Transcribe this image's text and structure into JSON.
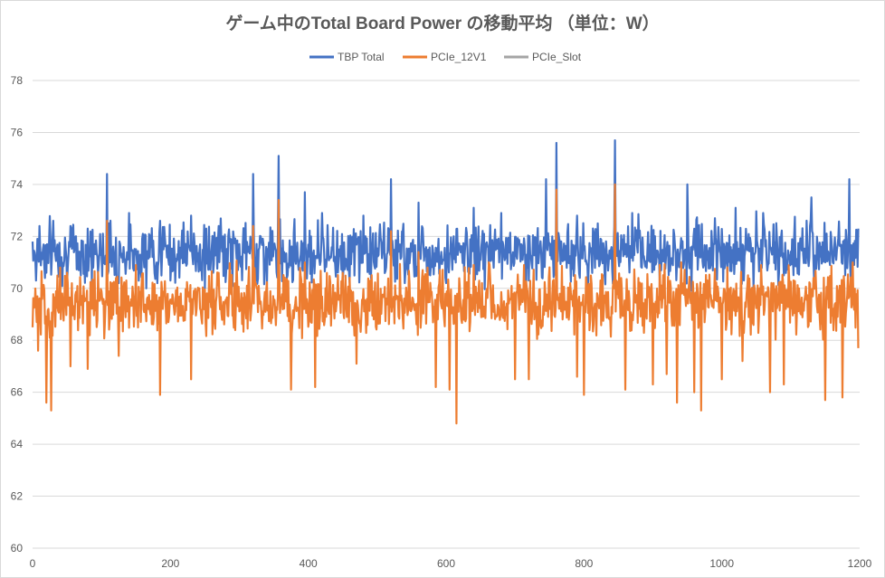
{
  "chart_data": {
    "type": "line",
    "title": "ゲーム中のTotal Board Power の移動平均 （単位：W）",
    "xlabel": "",
    "ylabel": "",
    "xlim": [
      0,
      1200
    ],
    "ylim": [
      60,
      78
    ],
    "x_ticks": [
      0,
      200,
      400,
      600,
      800,
      1000,
      1200
    ],
    "y_ticks": [
      60,
      62,
      64,
      66,
      68,
      70,
      72,
      74,
      76,
      78
    ],
    "grid": true,
    "legend_position": "top",
    "series": [
      {
        "name": "TBP Total",
        "color": "#4472c4",
        "base": 71.4,
        "noise": 0.55,
        "points": [
          [
            0,
            71.8
          ],
          [
            5,
            70.3
          ],
          [
            10,
            72.4
          ],
          [
            20,
            70.6
          ],
          [
            30,
            72.6
          ],
          [
            40,
            71.0
          ],
          [
            55,
            72.4
          ],
          [
            70,
            70.5
          ],
          [
            80,
            72.3
          ],
          [
            95,
            70.6
          ],
          [
            108,
            74.4
          ],
          [
            112,
            71.0
          ],
          [
            125,
            70.2
          ],
          [
            140,
            72.9
          ],
          [
            165,
            70.0
          ],
          [
            185,
            72.6
          ],
          [
            200,
            70.3
          ],
          [
            230,
            72.8
          ],
          [
            250,
            70.0
          ],
          [
            270,
            72.4
          ],
          [
            320,
            74.4
          ],
          [
            340,
            70.1
          ],
          [
            357,
            75.1
          ],
          [
            370,
            70.5
          ],
          [
            395,
            73.7
          ],
          [
            420,
            72.9
          ],
          [
            450,
            70.3
          ],
          [
            480,
            72.8
          ],
          [
            520,
            74.2
          ],
          [
            540,
            70.2
          ],
          [
            560,
            73.3
          ],
          [
            600,
            70.2
          ],
          [
            640,
            73.1
          ],
          [
            680,
            72.9
          ],
          [
            720,
            70.3
          ],
          [
            745,
            74.2
          ],
          [
            760,
            75.6
          ],
          [
            790,
            72.8
          ],
          [
            820,
            72.5
          ],
          [
            845,
            75.7
          ],
          [
            870,
            72.9
          ],
          [
            900,
            70.8
          ],
          [
            950,
            74.0
          ],
          [
            990,
            72.7
          ],
          [
            1020,
            73.1
          ],
          [
            1060,
            72.9
          ],
          [
            1090,
            70.5
          ],
          [
            1130,
            73.5
          ],
          [
            1150,
            71.0
          ],
          [
            1185,
            74.2
          ],
          [
            1192,
            70.9
          ],
          [
            1198,
            72.3
          ]
        ]
      },
      {
        "name": "PCIe_12V1",
        "color": "#ed7d31",
        "base": 69.5,
        "noise": 0.6,
        "points": [
          [
            0,
            68.5
          ],
          [
            8,
            67.6
          ],
          [
            20,
            65.6
          ],
          [
            27,
            65.3
          ],
          [
            40,
            70.8
          ],
          [
            55,
            67.0
          ],
          [
            80,
            66.9
          ],
          [
            108,
            72.6
          ],
          [
            125,
            67.4
          ],
          [
            150,
            70.9
          ],
          [
            185,
            65.9
          ],
          [
            230,
            66.5
          ],
          [
            270,
            70.6
          ],
          [
            320,
            72.4
          ],
          [
            357,
            73.4
          ],
          [
            375,
            66.1
          ],
          [
            395,
            71.0
          ],
          [
            410,
            66.2
          ],
          [
            450,
            70.6
          ],
          [
            470,
            67.1
          ],
          [
            520,
            72.2
          ],
          [
            560,
            71.4
          ],
          [
            585,
            66.2
          ],
          [
            605,
            66.1
          ],
          [
            615,
            64.8
          ],
          [
            640,
            70.9
          ],
          [
            700,
            66.5
          ],
          [
            720,
            66.5
          ],
          [
            760,
            73.8
          ],
          [
            790,
            66.6
          ],
          [
            800,
            65.9
          ],
          [
            845,
            74.0
          ],
          [
            860,
            66.1
          ],
          [
            900,
            66.3
          ],
          [
            920,
            66.7
          ],
          [
            935,
            65.6
          ],
          [
            960,
            66.0
          ],
          [
            970,
            65.3
          ],
          [
            1000,
            66.5
          ],
          [
            1030,
            67.2
          ],
          [
            1070,
            66.0
          ],
          [
            1090,
            66.3
          ],
          [
            1150,
            65.7
          ],
          [
            1175,
            65.8
          ],
          [
            1190,
            71.0
          ],
          [
            1198,
            67.7
          ]
        ]
      },
      {
        "name": "PCIe_Slot",
        "color": "#a5a5a5",
        "points": []
      }
    ]
  }
}
